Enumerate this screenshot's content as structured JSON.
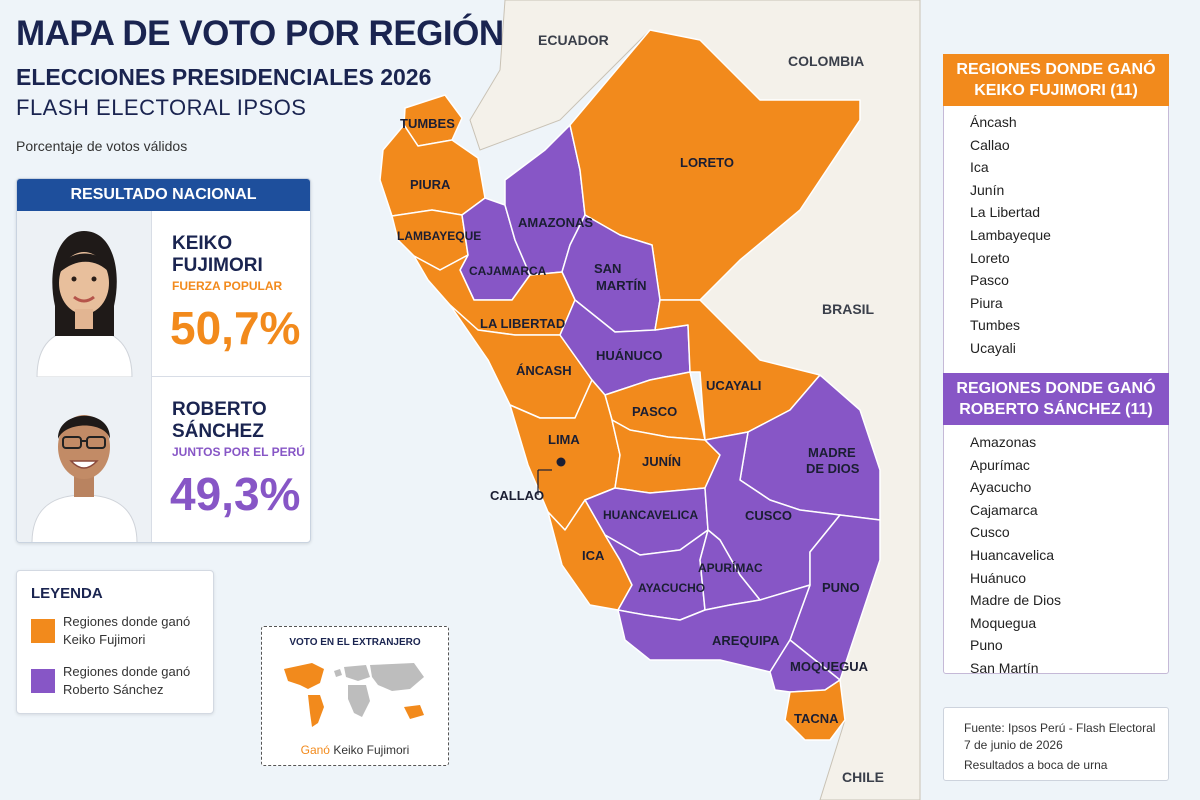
{
  "header": {
    "title": "MAPA DE VOTO POR REGIÓN",
    "subtitle": "ELECCIONES PRESIDENCIALES 2026",
    "source_line": "FLASH ELECTORAL IPSOS",
    "caption": "Porcentaje de votos válidos"
  },
  "colors": {
    "keiko": "#f28a1c",
    "sanchez": "#8756c6",
    "header_blue": "#1e4f9c"
  },
  "national": {
    "title": "RESULTADO NACIONAL",
    "candidates": [
      {
        "name": "KEIKO FUJIMORI",
        "party": "FUERZA POPULAR",
        "pct": "50,7%",
        "color": "#f28a1c"
      },
      {
        "name": "ROBERTO SÁNCHEZ",
        "party": "JUNTOS POR EL PERÚ",
        "pct": "49,3%",
        "color": "#8756c6"
      }
    ]
  },
  "legend": {
    "title": "LEYENDA",
    "items": [
      {
        "label": "Regiones donde ganó Keiko Fujimori",
        "color": "#f28a1c"
      },
      {
        "label": "Regiones donde ganó Roberto Sánchez",
        "color": "#8756c6"
      }
    ]
  },
  "abroad": {
    "title": "VOTO EN EL EXTRANJERO",
    "won": "Ganó",
    "winner": "Keiko Fujimori"
  },
  "countries": [
    "ECUADOR",
    "COLOMBIA",
    "BRASIL",
    "CHILE"
  ],
  "map_labels": {
    "tumbes": "TUMBES",
    "piura": "PIURA",
    "lambayeque": "LAMBAYEQUE",
    "cajamarca": "CAJAMARCA",
    "amazonas": "AMAZONAS",
    "loreto": "LORETO",
    "san_martin": "SAN MARTÍN",
    "la_libertad": "LA LIBERTAD",
    "ancash": "ÁNCASH",
    "huanuco": "HUÁNUCO",
    "ucayali": "UCAYALI",
    "pasco": "PASCO",
    "lima": "LIMA",
    "callao": "CALLAO",
    "junin": "JUNÍN",
    "huancavelica": "HUANCAVELICA",
    "madre_de_dios": "MADRE DE DIOS",
    "cusco": "CUSCO",
    "ica": "ICA",
    "ayacucho": "AYACUCHO",
    "apurimac": "APURÍMAC",
    "puno": "PUNO",
    "arequipa": "AREQUIPA",
    "moquegua": "MOQUEGUA",
    "tacna": "TACNA"
  },
  "lists": {
    "keiko": {
      "title": "REGIONES DONDE GANÓ KEIKO FUJIMORI (11)",
      "regions": [
        "Áncash",
        "Callao",
        "Ica",
        "Junín",
        "La Libertad",
        "Lambayeque",
        "Loreto",
        "Pasco",
        "Piura",
        "Tumbes",
        "Ucayali"
      ]
    },
    "sanchez": {
      "title": "REGIONES DONDE GANÓ ROBERTO SÁNCHEZ (11)",
      "regions": [
        "Amazonas",
        "Apurímac",
        "Ayacucho",
        "Cajamarca",
        "Cusco",
        "Huancavelica",
        "Huánuco",
        "Madre de Dios",
        "Moquegua",
        "Puno",
        "San Martín"
      ]
    }
  },
  "source": {
    "line1": "Fuente: Ipsos Perú - Flash Electoral",
    "line2": "7 de junio de 2026",
    "line3": "Resultados a boca de urna"
  }
}
